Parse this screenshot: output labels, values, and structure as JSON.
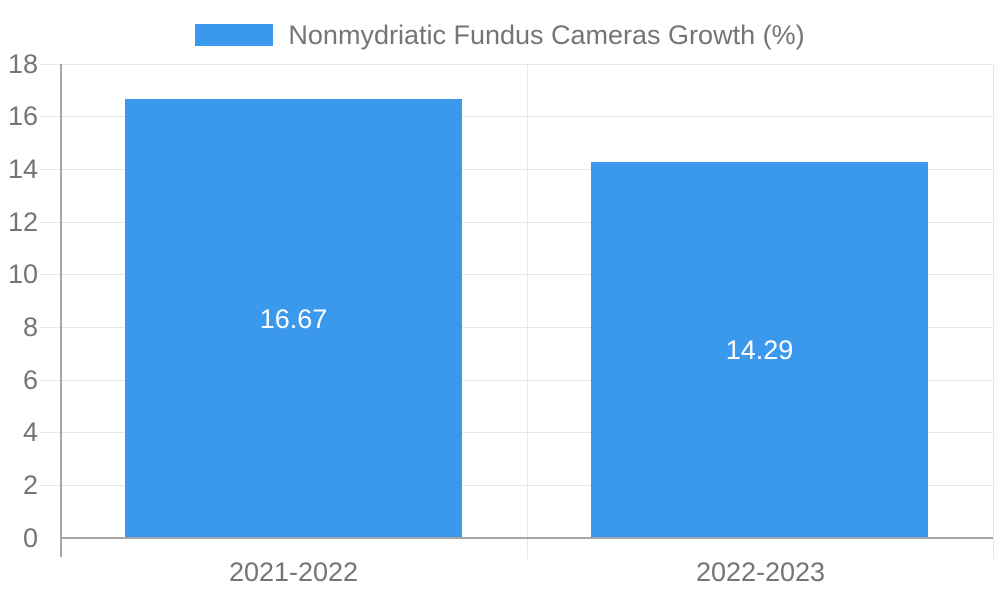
{
  "legend": {
    "label": "Nonmydriatic Fundus Cameras Growth (%)",
    "swatch_color": "#3a99ec"
  },
  "chart_data": {
    "type": "bar",
    "title": "",
    "xlabel": "",
    "ylabel": "",
    "categories": [
      "2021-2022",
      "2022-2023"
    ],
    "values": [
      16.67,
      14.29
    ],
    "value_labels": [
      "16.67",
      "14.29"
    ],
    "series_name": "Nonmydriatic Fundus Cameras Growth (%)",
    "ylim": [
      0,
      18
    ],
    "yticks": [
      0,
      2,
      4,
      6,
      8,
      10,
      12,
      14,
      16,
      18
    ],
    "grid": true,
    "legend_position": "top",
    "bar_color": "#3a99ec",
    "bar_label_color": "#ffffff"
  },
  "colors": {
    "bar": "#3a99ec",
    "grid": "#e6e6e6",
    "axis": "#a6a6a6",
    "text": "#757575",
    "background": "#ffffff"
  }
}
